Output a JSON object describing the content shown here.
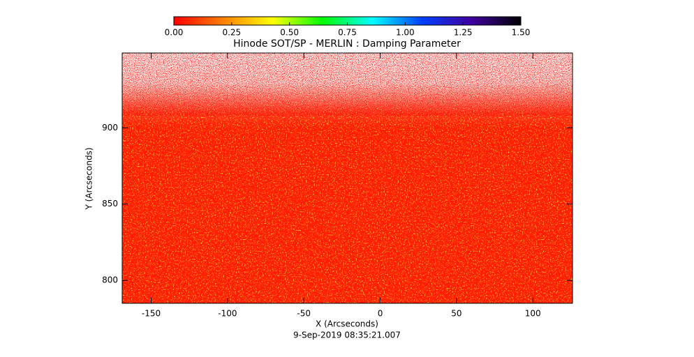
{
  "chart_data": {
    "type": "image",
    "title": "Hinode SOT/SP - MERLIN : Damping Parameter",
    "xlabel": "X (Arcseconds)",
    "ylabel": "Y (Arcseconds)",
    "footer": "9-Sep-2019 08:35:21.007",
    "xlim": [
      -169,
      126
    ],
    "xticks": [
      -150,
      -100,
      -50,
      0,
      50,
      100
    ],
    "ylim": [
      785,
      949
    ],
    "yticks": [
      800,
      850,
      900
    ],
    "colorbar": {
      "lim": [
        0,
        1.5
      ],
      "ticks": [
        {
          "value": 0,
          "label": "0.00"
        },
        {
          "value": 0.25,
          "label": "0.25"
        },
        {
          "value": 0.5,
          "label": "0.50"
        },
        {
          "value": 0.75,
          "label": "0.75"
        },
        {
          "value": 1,
          "label": "1.00"
        },
        {
          "value": 1.25,
          "label": "1.25"
        },
        {
          "value": 1.5,
          "label": "1.50"
        }
      ],
      "colormap": [
        "#ff0000",
        "#ff8000",
        "#ffff00",
        "#00ff00",
        "#00ffff",
        "#0040ff",
        "#4000a0",
        "#000000"
      ]
    }
  }
}
